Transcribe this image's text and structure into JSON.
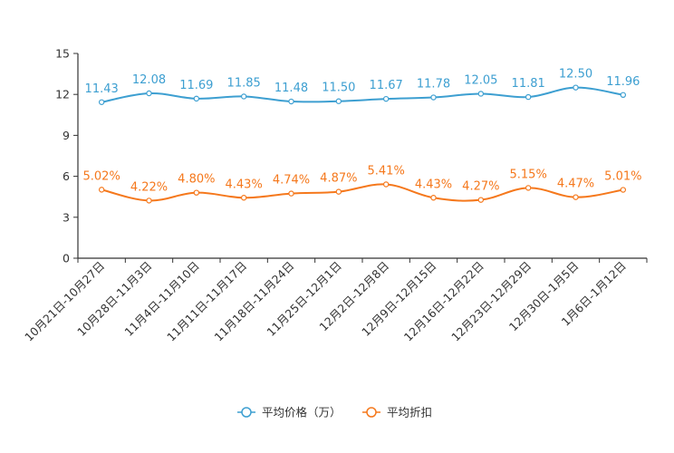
{
  "chart_data": {
    "type": "line",
    "categories": [
      "10月21日-10月27日",
      "10月28日-11月3日",
      "11月4日-11月10日",
      "11月11日-11月17日",
      "11月18日-11月24日",
      "11月25日-12月1日",
      "12月2日-12月8日",
      "12月9日-12月15日",
      "12月16日-12月22日",
      "12月23日-12月29日",
      "12月30日-1月5日",
      "1月6日-1月12日"
    ],
    "ylim": [
      0,
      15
    ],
    "yticks": [
      0,
      3,
      6,
      9,
      12,
      15
    ],
    "ytick_labels": [
      "0",
      "3",
      "6",
      "9",
      "12",
      "15"
    ],
    "series": [
      {
        "name": "平均价格（万）",
        "color": "#3d9fd1",
        "values": [
          11.43,
          12.08,
          11.69,
          11.85,
          11.48,
          11.5,
          11.67,
          11.78,
          12.05,
          11.81,
          12.5,
          11.96
        ],
        "labels": [
          "11.43",
          "12.08",
          "11.69",
          "11.85",
          "11.48",
          "11.50",
          "11.67",
          "11.78",
          "12.05",
          "11.81",
          "12.50",
          "11.96"
        ]
      },
      {
        "name": "平均折扣",
        "color": "#f5781c",
        "values": [
          5.02,
          4.22,
          4.8,
          4.43,
          4.74,
          4.87,
          5.41,
          4.43,
          4.27,
          5.15,
          4.47,
          5.01
        ],
        "labels": [
          "5.02%",
          "4.22%",
          "4.80%",
          "4.43%",
          "4.74%",
          "4.87%",
          "5.41%",
          "4.43%",
          "4.27%",
          "5.15%",
          "4.47%",
          "5.01%"
        ]
      }
    ],
    "legend_position": "bottom-center",
    "grid": false
  }
}
